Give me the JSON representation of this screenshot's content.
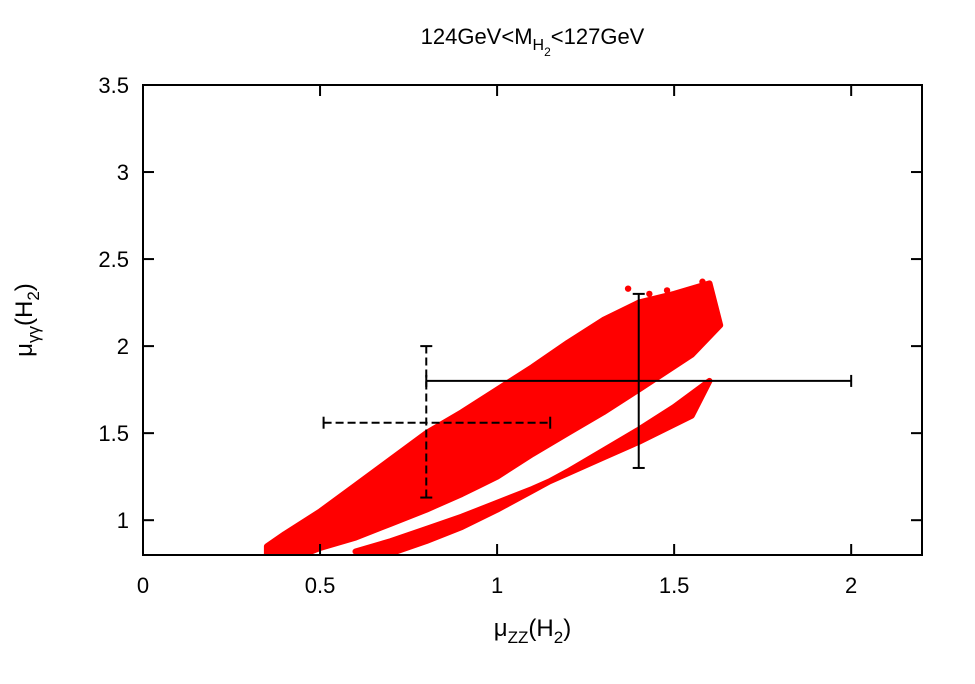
{
  "chart_data": {
    "type": "scatter",
    "title": {
      "prefix": "124GeV<M",
      "sub": "H",
      "subsub": "2",
      "suffix": "<127GeV"
    },
    "xlabel": {
      "base": "μ",
      "sub": "ZZ",
      "suffix_open": "(H",
      "suffix_sub": "2",
      "suffix_close": ")"
    },
    "ylabel": {
      "base": "μ",
      "sub": "γγ",
      "suffix_open": "(H",
      "suffix_sub": "2",
      "suffix_close": ")"
    },
    "xlim": [
      0,
      2.2
    ],
    "ylim": [
      0.8,
      3.5
    ],
    "xticks": [
      0,
      0.5,
      1,
      1.5,
      2
    ],
    "xtick_labels": [
      "0",
      "0.5",
      "1",
      "1.5",
      "2"
    ],
    "yticks": [
      1,
      1.5,
      2,
      2.5,
      3,
      3.5
    ],
    "ytick_labels": [
      "1",
      "1.5",
      "2",
      "2.5",
      "3",
      "3.5"
    ],
    "grid": false,
    "series": [
      {
        "color": "#ff0000",
        "band_upper_main": [
          [
            0.35,
            0.85
          ],
          [
            0.4,
            0.92
          ],
          [
            0.5,
            1.05
          ],
          [
            0.6,
            1.2
          ],
          [
            0.7,
            1.35
          ],
          [
            0.8,
            1.5
          ],
          [
            0.9,
            1.62
          ],
          [
            1.0,
            1.75
          ],
          [
            1.1,
            1.88
          ],
          [
            1.2,
            2.02
          ],
          [
            1.3,
            2.15
          ],
          [
            1.4,
            2.25
          ],
          [
            1.5,
            2.3
          ],
          [
            1.6,
            2.36
          ]
        ],
        "band_lower_main": [
          [
            1.63,
            2.12
          ],
          [
            1.55,
            1.95
          ],
          [
            1.4,
            1.75
          ],
          [
            1.3,
            1.62
          ],
          [
            1.2,
            1.5
          ],
          [
            1.1,
            1.38
          ],
          [
            1.0,
            1.25
          ],
          [
            0.95,
            1.2
          ],
          [
            0.9,
            1.15
          ],
          [
            0.8,
            1.06
          ],
          [
            0.7,
            0.98
          ],
          [
            0.6,
            0.9
          ],
          [
            0.5,
            0.84
          ],
          [
            0.45,
            0.8
          ],
          [
            0.35,
            0.8
          ]
        ],
        "band_upper_lower": [
          [
            0.6,
            0.82
          ],
          [
            0.7,
            0.88
          ],
          [
            0.8,
            0.95
          ],
          [
            0.9,
            1.02
          ],
          [
            1.0,
            1.1
          ],
          [
            1.1,
            1.18
          ],
          [
            1.2,
            1.27
          ],
          [
            1.3,
            1.36
          ],
          [
            1.4,
            1.45
          ],
          [
            1.5,
            1.55
          ],
          [
            1.55,
            1.6
          ]
        ],
        "band_lower_lower": [
          [
            1.6,
            1.8
          ],
          [
            1.5,
            1.65
          ],
          [
            1.4,
            1.52
          ],
          [
            1.3,
            1.4
          ],
          [
            1.2,
            1.28
          ],
          [
            1.1,
            1.17
          ],
          [
            1.0,
            1.06
          ],
          [
            0.9,
            0.96
          ],
          [
            0.8,
            0.88
          ],
          [
            0.7,
            0.81
          ],
          [
            0.62,
            0.8
          ]
        ],
        "outliers": [
          [
            1.58,
            2.37
          ],
          [
            1.48,
            2.32
          ],
          [
            1.43,
            2.3
          ],
          [
            1.37,
            2.33
          ],
          [
            1.55,
            2.3
          ],
          [
            1.62,
            2.17
          ],
          [
            1.6,
            2.07
          ],
          [
            0.36,
            0.82
          ],
          [
            0.42,
            0.81
          ]
        ]
      }
    ],
    "error_bars": [
      {
        "style": "solid",
        "x": 1.4,
        "y": 1.8,
        "xerr": [
          0.6,
          0.6
        ],
        "yerr": [
          0.5,
          0.5
        ],
        "color": "#000000"
      },
      {
        "style": "dashed",
        "x": 0.8,
        "y": 1.56,
        "xerr": [
          0.29,
          0.35
        ],
        "yerr": [
          0.43,
          0.44
        ],
        "color": "#000000"
      }
    ]
  }
}
